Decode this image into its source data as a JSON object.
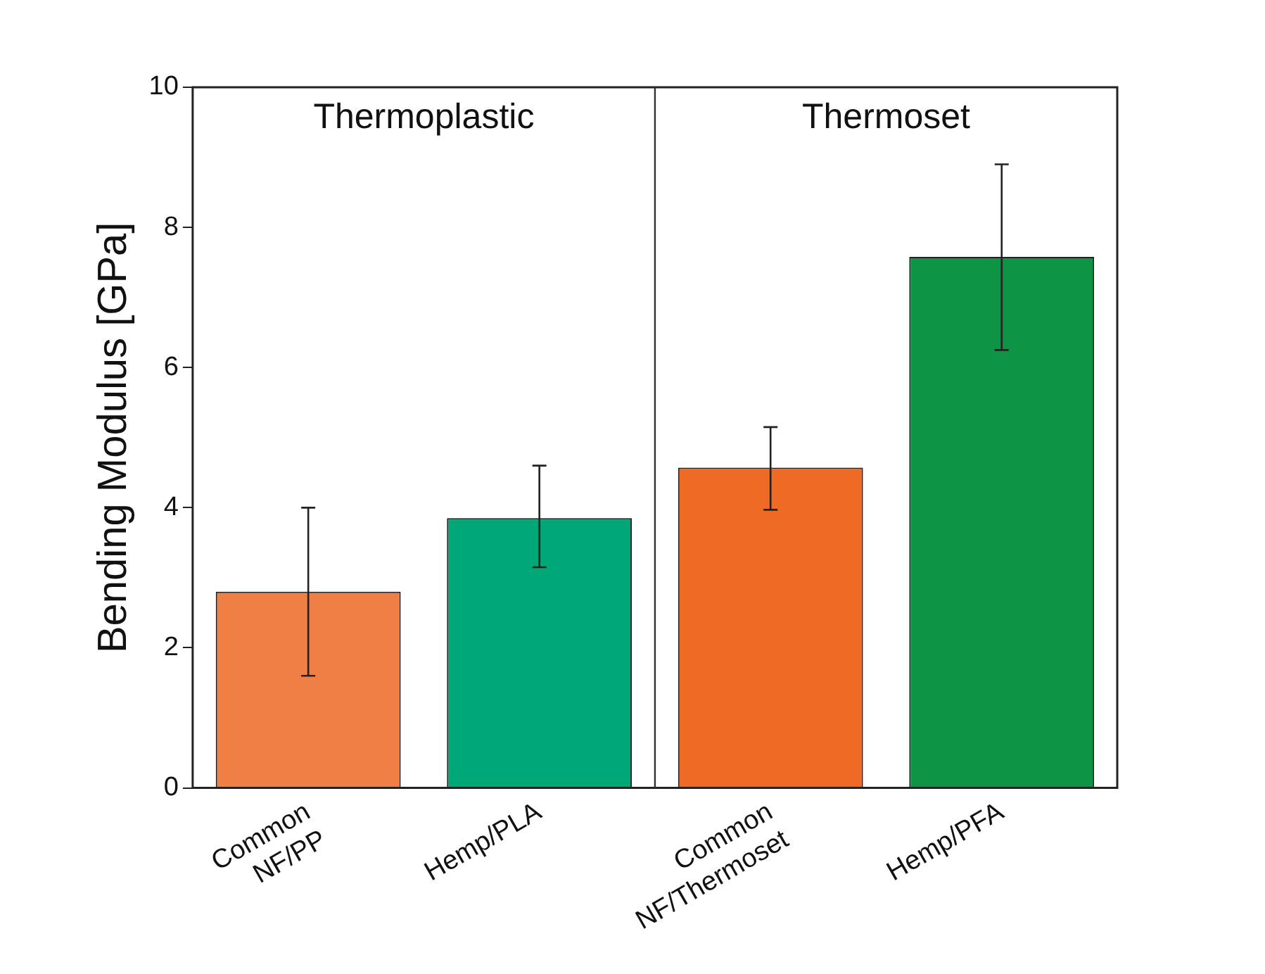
{
  "chart_data": {
    "type": "bar",
    "ylabel": "Bending Modulus [GPa]",
    "categories": [
      "Common NF/PP",
      "Hemp/PLA",
      "Common NF/Thermoset",
      "Hemp/PFA"
    ],
    "values": [
      2.8,
      3.85,
      4.57,
      7.58
    ],
    "colors": [
      "#f07f45",
      "#00a877",
      "#ef6a24",
      "#0d9444"
    ],
    "errors": [
      [
        1.6,
        4.0
      ],
      [
        3.15,
        4.6
      ],
      [
        3.97,
        5.15
      ],
      [
        6.25,
        8.9
      ]
    ],
    "ylim": [
      0,
      10
    ],
    "yticks": [
      0,
      2,
      4,
      6,
      8,
      10
    ],
    "annotations": [
      "Thermoplastic",
      "Thermoset"
    ],
    "grid": false,
    "legend": false
  }
}
